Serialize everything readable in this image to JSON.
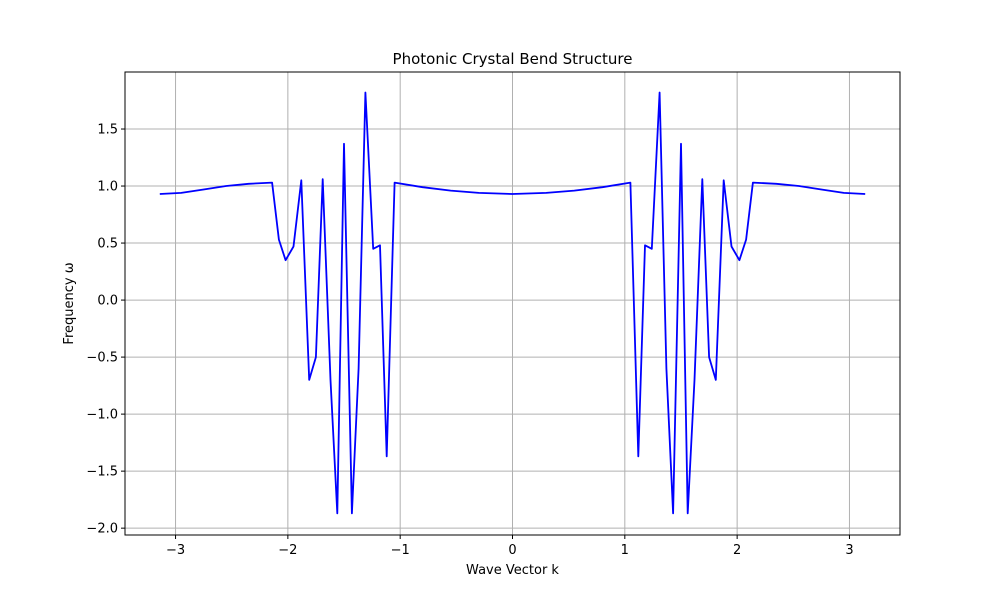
{
  "chart_data": {
    "type": "line",
    "title": "Photonic Crystal Bend Structure",
    "xlabel": "Wave Vector k",
    "ylabel": "Frequency ω",
    "xlim": [
      -3.45,
      3.45
    ],
    "ylim": [
      -2.06,
      2.0
    ],
    "xticks": [
      -3,
      -2,
      -1,
      0,
      1,
      2,
      3
    ],
    "xtick_labels": [
      "−3",
      "−2",
      "−1",
      "0",
      "1",
      "2",
      "3"
    ],
    "yticks": [
      -2.0,
      -1.5,
      -1.0,
      -0.5,
      0.0,
      0.5,
      1.0,
      1.5
    ],
    "ytick_labels": [
      "−2.0",
      "−1.5",
      "−1.0",
      "−0.5",
      "0.0",
      "0.5",
      "1.0",
      "1.5"
    ],
    "grid": true,
    "series": [
      {
        "color": "#0000ff",
        "x": [
          -3.14,
          -2.95,
          -2.75,
          -2.55,
          -2.35,
          -2.14,
          -2.08,
          -2.02,
          -1.95,
          -1.88,
          -1.81,
          -1.75,
          -1.69,
          -1.62,
          -1.56,
          -1.5,
          -1.43,
          -1.37,
          -1.31,
          -1.24,
          -1.18,
          -1.12,
          -1.05,
          -0.8,
          -0.55,
          -0.3,
          0.0,
          0.3,
          0.55,
          0.8,
          1.05,
          1.12,
          1.18,
          1.24,
          1.31,
          1.37,
          1.43,
          1.5,
          1.56,
          1.62,
          1.69,
          1.75,
          1.81,
          1.88,
          1.95,
          2.02,
          2.08,
          2.14,
          2.35,
          2.55,
          2.75,
          2.95,
          3.14
        ],
        "y": [
          0.93,
          0.94,
          0.97,
          1.0,
          1.02,
          1.03,
          0.53,
          0.35,
          0.47,
          1.05,
          -0.7,
          -0.5,
          1.06,
          -0.7,
          -1.87,
          1.37,
          -1.87,
          -0.6,
          1.82,
          0.45,
          0.48,
          -1.37,
          1.03,
          0.99,
          0.96,
          0.94,
          0.93,
          0.94,
          0.96,
          0.99,
          1.03,
          -1.37,
          0.48,
          0.45,
          1.82,
          -0.6,
          -1.87,
          1.37,
          -1.87,
          -0.7,
          1.06,
          -0.5,
          -0.7,
          1.05,
          0.47,
          0.35,
          0.53,
          1.03,
          1.02,
          1.0,
          0.97,
          0.94,
          0.93
        ]
      }
    ]
  },
  "colors": {
    "line": "#0000ff",
    "grid": "#b0b0b0",
    "axes": "#000000"
  }
}
